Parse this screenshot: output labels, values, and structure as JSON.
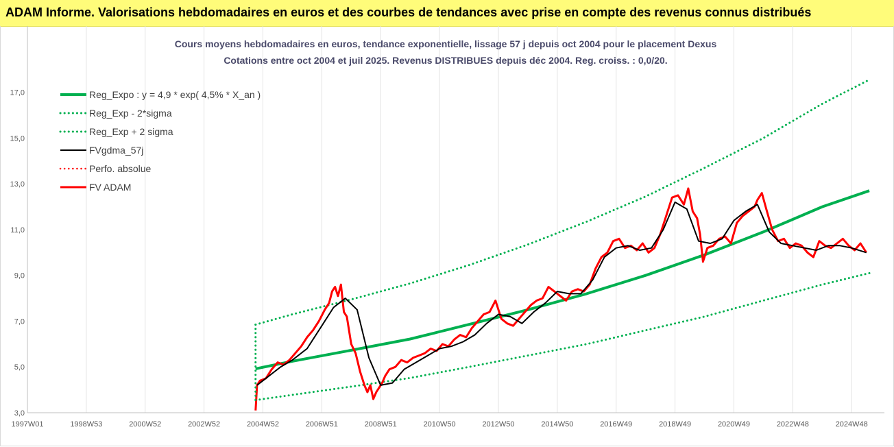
{
  "banner": {
    "text": "ADAM Informe. Valorisations hebdomadaires en euros et des courbes de tendances avec prise en compte des revenus connus distribués"
  },
  "chart_data": {
    "type": "line",
    "title_lines": [
      "Cours moyens hebdomadaires en euros, tendance exponentielle, lissage 57 j depuis oct 2004 pour le placement Dexus",
      "Cotations entre oct 2004 et juil 2025. Revenus DISTRIBUES depuis déc 2004. Reg. croiss. : 0,0/20."
    ],
    "xlabel": "",
    "ylabel": "",
    "xlim": [
      1997.0,
      2025.6
    ],
    "ylim": [
      3.0,
      17.8
    ],
    "grid": "vertical",
    "legend_position": "top-left",
    "y_ticks": [
      "3,0",
      "5,0",
      "7,0",
      "9,0",
      "11,0",
      "13,0",
      "15,0",
      "17,0"
    ],
    "y_tick_values": [
      3,
      5,
      7,
      9,
      11,
      13,
      15,
      17
    ],
    "x_ticks": [
      "1997W01",
      "1998W53",
      "2000W52",
      "2002W52",
      "2004W52",
      "2006W51",
      "2008W51",
      "2010W50",
      "2012W50",
      "2014W50",
      "2016W49",
      "2018W49",
      "2020W49",
      "2022W48",
      "2024W48"
    ],
    "x_tick_values": [
      1997.0,
      1999.0,
      2001.0,
      2003.0,
      2005.0,
      2007.0,
      2009.0,
      2011.0,
      2013.0,
      2015.0,
      2017.0,
      2019.0,
      2021.0,
      2023.0,
      2025.0
    ],
    "series": [
      {
        "name": "Reg_Expo : y = 4,9 * exp( 4,5% *  X_an )",
        "color": "#00b050",
        "style": "solid",
        "x": [
          2004.75,
          2006,
          2008,
          2010,
          2012,
          2014,
          2016,
          2018,
          2020,
          2022,
          2024,
          2025.6
        ],
        "y": [
          4.92,
          5.25,
          5.73,
          6.22,
          6.86,
          7.5,
          8.2,
          9.0,
          9.9,
          10.9,
          12.0,
          12.7
        ]
      },
      {
        "name": "Reg_Exp - 2*sigma",
        "color": "#00b050",
        "style": "dotted",
        "x": [
          2004.75,
          2006,
          2008,
          2010,
          2012,
          2014,
          2016,
          2018,
          2020,
          2022,
          2024,
          2025.6
        ],
        "y": [
          3.55,
          3.78,
          4.14,
          4.52,
          5.0,
          5.5,
          6.0,
          6.6,
          7.2,
          7.9,
          8.6,
          9.1
        ]
      },
      {
        "name": "Reg_Exp + 2 sigma",
        "color": "#00b050",
        "style": "dotted",
        "x": [
          2004.75,
          2006,
          2008,
          2010,
          2012,
          2014,
          2016,
          2018,
          2020,
          2022,
          2024,
          2025.6
        ],
        "y": [
          6.85,
          7.3,
          7.95,
          8.65,
          9.45,
          10.35,
          11.35,
          12.45,
          13.7,
          15.0,
          16.5,
          17.55
        ]
      },
      {
        "name": "FVgdma_57j",
        "color": "#000000",
        "style": "solid",
        "x": [
          2004.8,
          2005.2,
          2005.6,
          2006.0,
          2006.5,
          2007.0,
          2007.4,
          2007.8,
          2008.2,
          2008.6,
          2009.0,
          2009.4,
          2009.8,
          2010.2,
          2010.6,
          2011.0,
          2011.4,
          2011.8,
          2012.2,
          2012.6,
          2013.0,
          2013.4,
          2013.8,
          2014.2,
          2014.6,
          2015.0,
          2015.4,
          2015.8,
          2016.2,
          2016.6,
          2017.0,
          2017.4,
          2017.8,
          2018.2,
          2018.6,
          2019.0,
          2019.4,
          2019.8,
          2020.2,
          2020.6,
          2021.0,
          2021.4,
          2021.8,
          2022.2,
          2022.6,
          2023.0,
          2023.4,
          2023.8,
          2024.2,
          2024.6,
          2025.0,
          2025.5
        ],
        "y": [
          4.2,
          4.6,
          5.0,
          5.3,
          5.8,
          6.8,
          7.6,
          8.0,
          7.5,
          5.4,
          4.2,
          4.3,
          4.9,
          5.2,
          5.5,
          5.8,
          5.9,
          6.1,
          6.4,
          6.9,
          7.3,
          7.2,
          6.9,
          7.4,
          7.8,
          8.3,
          8.2,
          8.2,
          8.8,
          9.8,
          10.2,
          10.3,
          10.1,
          10.2,
          11.0,
          12.2,
          11.9,
          10.5,
          10.4,
          10.6,
          11.4,
          11.8,
          12.1,
          10.9,
          10.4,
          10.3,
          10.2,
          10.1,
          10.3,
          10.3,
          10.2,
          10.0
        ]
      },
      {
        "name": "Perfo. absolue",
        "color": "#ff0000",
        "style": "dotted",
        "x": [],
        "y": []
      },
      {
        "name": "FV ADAM",
        "color": "#ff0000",
        "style": "solid",
        "x": [
          2004.75,
          2004.8,
          2004.9,
          2005.1,
          2005.3,
          2005.5,
          2005.7,
          2005.9,
          2006.1,
          2006.3,
          2006.5,
          2006.7,
          2006.9,
          2007.1,
          2007.25,
          2007.35,
          2007.45,
          2007.55,
          2007.65,
          2007.75,
          2007.85,
          2008.0,
          2008.15,
          2008.3,
          2008.45,
          2008.55,
          2008.65,
          2008.75,
          2008.85,
          2008.95,
          2009.05,
          2009.15,
          2009.3,
          2009.5,
          2009.7,
          2009.9,
          2010.1,
          2010.3,
          2010.5,
          2010.7,
          2010.9,
          2011.1,
          2011.3,
          2011.5,
          2011.7,
          2011.9,
          2012.1,
          2012.3,
          2012.5,
          2012.7,
          2012.9,
          2013.1,
          2013.3,
          2013.5,
          2013.7,
          2013.9,
          2014.1,
          2014.3,
          2014.5,
          2014.7,
          2014.9,
          2015.1,
          2015.3,
          2015.5,
          2015.7,
          2015.9,
          2016.1,
          2016.3,
          2016.5,
          2016.7,
          2016.9,
          2017.1,
          2017.3,
          2017.5,
          2017.7,
          2017.9,
          2018.1,
          2018.3,
          2018.5,
          2018.7,
          2018.9,
          2019.1,
          2019.3,
          2019.45,
          2019.6,
          2019.75,
          2019.85,
          2019.95,
          2020.1,
          2020.3,
          2020.5,
          2020.7,
          2020.9,
          2021.1,
          2021.3,
          2021.5,
          2021.7,
          2021.8,
          2021.95,
          2022.1,
          2022.3,
          2022.5,
          2022.7,
          2022.9,
          2023.1,
          2023.3,
          2023.5,
          2023.7,
          2023.9,
          2024.1,
          2024.3,
          2024.5,
          2024.7,
          2024.9,
          2025.1,
          2025.3,
          2025.5
        ],
        "y": [
          3.1,
          4.2,
          4.4,
          4.5,
          4.9,
          5.2,
          5.1,
          5.3,
          5.6,
          5.9,
          6.3,
          6.6,
          7.0,
          7.5,
          7.8,
          8.3,
          8.5,
          8.1,
          8.6,
          7.4,
          7.2,
          6.0,
          5.6,
          4.8,
          4.2,
          3.9,
          4.2,
          3.6,
          3.9,
          4.1,
          4.3,
          4.6,
          4.9,
          5.0,
          5.3,
          5.2,
          5.4,
          5.5,
          5.6,
          5.8,
          5.7,
          6.0,
          5.9,
          6.2,
          6.4,
          6.3,
          6.7,
          7.0,
          7.3,
          7.4,
          7.9,
          7.1,
          6.9,
          6.8,
          7.1,
          7.4,
          7.7,
          7.9,
          8.0,
          8.5,
          8.3,
          8.1,
          7.9,
          8.3,
          8.4,
          8.3,
          8.6,
          9.3,
          9.8,
          10.0,
          10.5,
          10.6,
          10.2,
          10.3,
          10.1,
          10.4,
          10.0,
          10.2,
          10.8,
          11.6,
          12.4,
          12.5,
          12.1,
          12.8,
          11.8,
          11.5,
          10.8,
          9.6,
          10.2,
          10.3,
          10.6,
          10.7,
          10.4,
          11.3,
          11.6,
          11.8,
          12.0,
          12.3,
          12.6,
          11.9,
          11.0,
          10.5,
          10.6,
          10.2,
          10.4,
          10.3,
          10.0,
          9.8,
          10.5,
          10.3,
          10.2,
          10.4,
          10.6,
          10.3,
          10.1,
          10.4,
          10.0
        ]
      }
    ]
  }
}
